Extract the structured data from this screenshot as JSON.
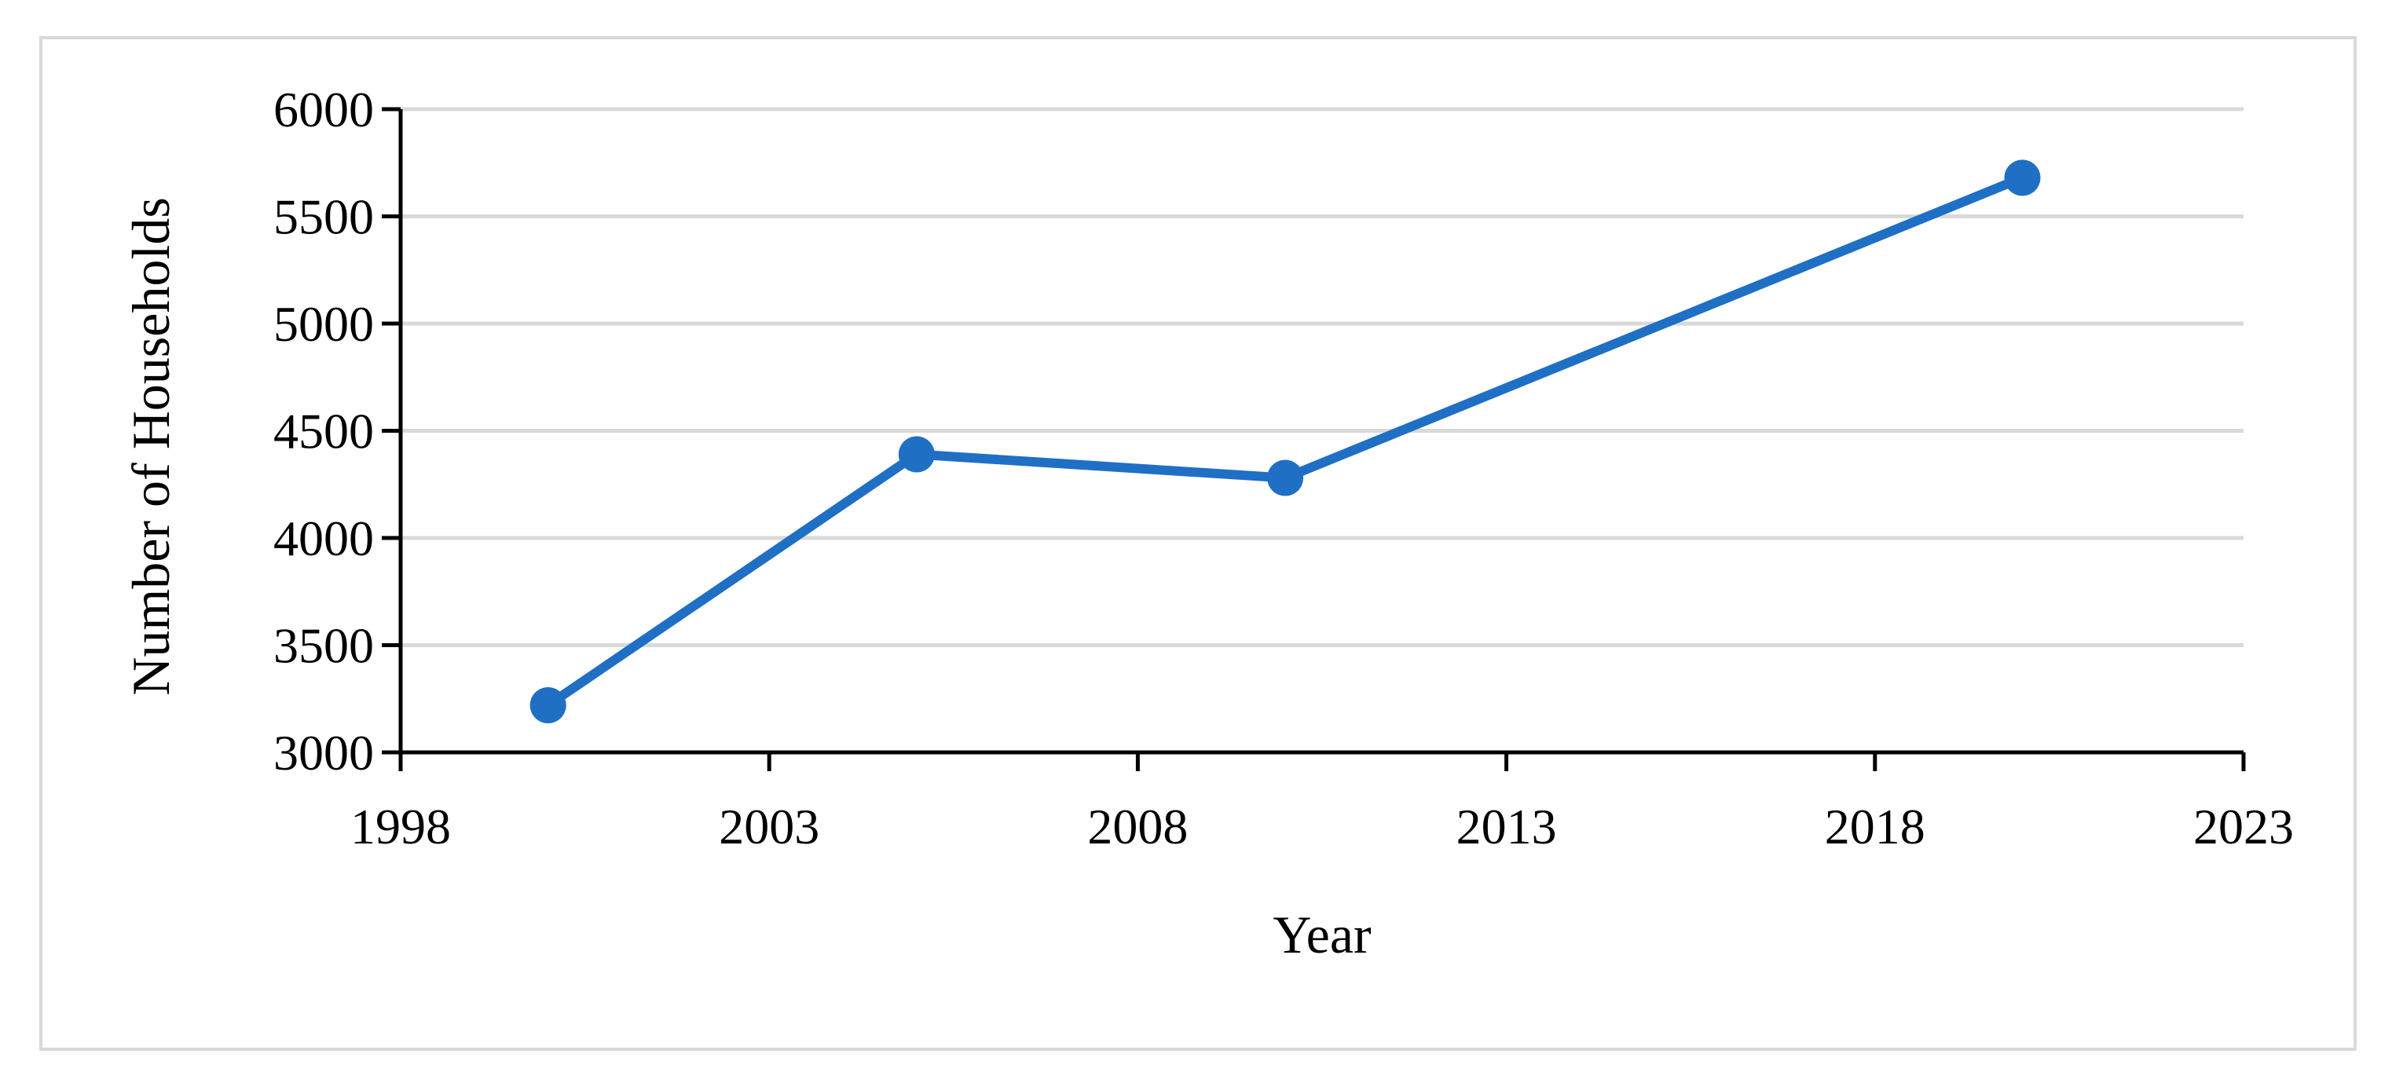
{
  "chart_data": {
    "type": "line",
    "title": "",
    "xlabel": "Year",
    "ylabel": "Number of Households",
    "xlim": [
      1998,
      2023
    ],
    "ylim": [
      3000,
      6000
    ],
    "x_ticks": [
      1998,
      2003,
      2008,
      2013,
      2018,
      2023
    ],
    "y_ticks": [
      3000,
      3500,
      4000,
      4500,
      5000,
      5500,
      6000
    ],
    "grid": "horizontal",
    "legend": "none",
    "series": [
      {
        "color": "#1f6fc5",
        "x": [
          2000,
          2005,
          2010,
          2020
        ],
        "y": [
          3220,
          4390,
          4280,
          5680
        ]
      }
    ]
  },
  "colors": {
    "line": "#1f6fc5",
    "grid": "#d9d9d9",
    "axis": "#000000",
    "frame": "#d9d9d9"
  }
}
